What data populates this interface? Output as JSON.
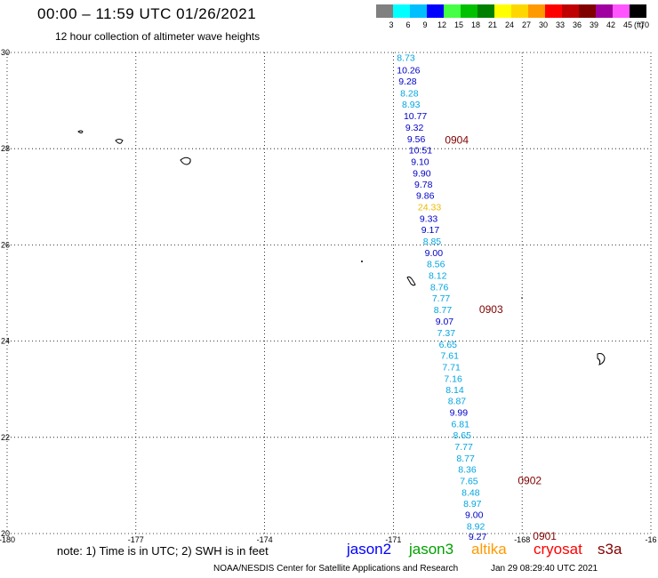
{
  "header": {
    "title": "00:00 – 11:59 UTC 01/26/2021",
    "subtitle": "12 hour collection of altimeter wave heights"
  },
  "legend": {
    "items": [
      {
        "label": "3",
        "color": "#808080"
      },
      {
        "label": "6",
        "color": "#00ffff"
      },
      {
        "label": "9",
        "color": "#00bfff"
      },
      {
        "label": "12",
        "color": "#0000ff"
      },
      {
        "label": "15",
        "color": "#44ff44"
      },
      {
        "label": "18",
        "color": "#00c000"
      },
      {
        "label": "21",
        "color": "#008000"
      },
      {
        "label": "24",
        "color": "#ffff00"
      },
      {
        "label": "27",
        "color": "#ffd700"
      },
      {
        "label": "30",
        "color": "#ff9900"
      },
      {
        "label": "33",
        "color": "#ff0000"
      },
      {
        "label": "36",
        "color": "#c00000"
      },
      {
        "label": "39",
        "color": "#800000"
      },
      {
        "label": "42",
        "color": "#a000a0"
      },
      {
        "label": "45",
        "color": "#ff55ff"
      },
      {
        "label": "70",
        "color": "#000000"
      }
    ],
    "unit": "(ft)"
  },
  "footer": {
    "note": "note: 1) Time is in UTC; 2) SWH is in feet",
    "missions": [
      {
        "label": "jason2",
        "color": "#0000ff"
      },
      {
        "label": "jason3",
        "color": "#00a000"
      },
      {
        "label": "altika",
        "color": "#ff9900"
      },
      {
        "label": "cryosat",
        "color": "#ff0000"
      },
      {
        "label": "s3a",
        "color": "#800000"
      }
    ],
    "credit": "NOAA/NESDIS Center for Satellite Applications and Research",
    "timestamp": "Jan 29 08:29:40 UTC 2021"
  },
  "chart_data": {
    "type": "scatter",
    "title": "00:00 – 11:59 UTC 01/26/2021",
    "xlabel": "",
    "ylabel": "",
    "xlim": [
      -180,
      -165
    ],
    "ylim": [
      20,
      30
    ],
    "x_ticks": [
      "-180",
      "-177",
      "-174",
      "-171",
      "-168",
      "-16"
    ],
    "y_ticks": [
      "20",
      "22",
      "24",
      "26",
      "28",
      "30"
    ],
    "grid": true,
    "series": [
      {
        "name": "jason2",
        "color_by_value": true,
        "points": [
          {
            "lon": -170.92,
            "lat": 29.9,
            "value": "8.73"
          },
          {
            "lon": -170.92,
            "lat": 29.64,
            "value": "10.26"
          },
          {
            "lon": -170.88,
            "lat": 29.41,
            "value": "9.28"
          },
          {
            "lon": -170.84,
            "lat": 29.16,
            "value": "8.28"
          },
          {
            "lon": -170.8,
            "lat": 28.93,
            "value": "8.93"
          },
          {
            "lon": -170.76,
            "lat": 28.69,
            "value": "10.77"
          },
          {
            "lon": -170.72,
            "lat": 28.45,
            "value": "9.32"
          },
          {
            "lon": -170.68,
            "lat": 28.21,
            "value": "9.56"
          },
          {
            "lon": -170.64,
            "lat": 27.98,
            "value": "10.51"
          },
          {
            "lon": -170.59,
            "lat": 27.74,
            "value": "9.10"
          },
          {
            "lon": -170.55,
            "lat": 27.5,
            "value": "9.90"
          },
          {
            "lon": -170.51,
            "lat": 27.26,
            "value": "9.78"
          },
          {
            "lon": -170.47,
            "lat": 27.03,
            "value": "9.86"
          },
          {
            "lon": -170.43,
            "lat": 26.79,
            "value": "24.33"
          },
          {
            "lon": -170.39,
            "lat": 26.55,
            "value": "9.33"
          },
          {
            "lon": -170.35,
            "lat": 26.32,
            "value": "9.17"
          },
          {
            "lon": -170.31,
            "lat": 26.08,
            "value": "8.85"
          },
          {
            "lon": -170.27,
            "lat": 25.84,
            "value": "9.00"
          },
          {
            "lon": -170.22,
            "lat": 25.61,
            "value": "8.56"
          },
          {
            "lon": -170.18,
            "lat": 25.37,
            "value": "8.12"
          },
          {
            "lon": -170.14,
            "lat": 25.13,
            "value": "8.76"
          },
          {
            "lon": -170.1,
            "lat": 24.9,
            "value": "7.77"
          },
          {
            "lon": -170.06,
            "lat": 24.66,
            "value": "8.77"
          },
          {
            "lon": -170.02,
            "lat": 24.42,
            "value": "9.07"
          },
          {
            "lon": -169.98,
            "lat": 24.18,
            "value": "7.37"
          },
          {
            "lon": -169.94,
            "lat": 23.94,
            "value": "6.65"
          },
          {
            "lon": -169.9,
            "lat": 23.71,
            "value": "7.61"
          },
          {
            "lon": -169.86,
            "lat": 23.47,
            "value": "7.71"
          },
          {
            "lon": -169.82,
            "lat": 23.23,
            "value": "7.16"
          },
          {
            "lon": -169.78,
            "lat": 22.99,
            "value": "8.14"
          },
          {
            "lon": -169.73,
            "lat": 22.76,
            "value": "8.87"
          },
          {
            "lon": -169.69,
            "lat": 22.52,
            "value": "9.99"
          },
          {
            "lon": -169.65,
            "lat": 22.28,
            "value": "6.81"
          },
          {
            "lon": -169.61,
            "lat": 22.05,
            "value": "8.65"
          },
          {
            "lon": -169.57,
            "lat": 21.81,
            "value": "7.77"
          },
          {
            "lon": -169.53,
            "lat": 21.57,
            "value": "8.77"
          },
          {
            "lon": -169.49,
            "lat": 21.34,
            "value": "8.36"
          },
          {
            "lon": -169.45,
            "lat": 21.1,
            "value": "7.65"
          },
          {
            "lon": -169.41,
            "lat": 20.86,
            "value": "8.48"
          },
          {
            "lon": -169.37,
            "lat": 20.63,
            "value": "8.97"
          },
          {
            "lon": -169.33,
            "lat": 20.4,
            "value": "9.00"
          },
          {
            "lon": -169.29,
            "lat": 20.16,
            "value": "8.92"
          },
          {
            "lon": -169.25,
            "lat": 19.94,
            "value": "9.27"
          }
        ]
      }
    ],
    "time_labels": [
      {
        "lon": -169.8,
        "lat": 28.18,
        "label": "0904"
      },
      {
        "lon": -169.0,
        "lat": 24.66,
        "label": "0903"
      },
      {
        "lon": -168.1,
        "lat": 21.1,
        "label": "0902"
      },
      {
        "lon": -167.75,
        "lat": 19.94,
        "label": "0901"
      }
    ]
  }
}
